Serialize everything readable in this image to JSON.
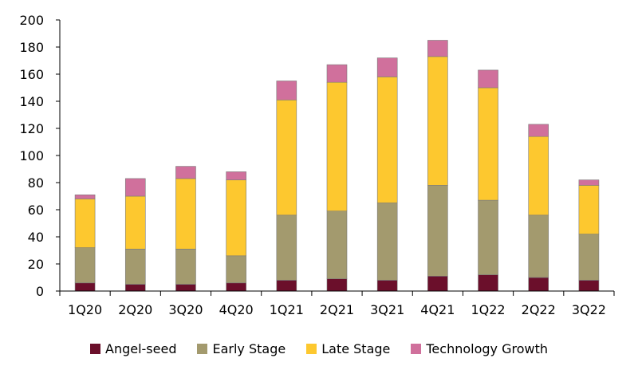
{
  "chart_data": {
    "type": "bar",
    "stacked": true,
    "categories": [
      "1Q20",
      "2Q20",
      "3Q20",
      "4Q20",
      "1Q21",
      "2Q21",
      "3Q21",
      "4Q21",
      "1Q22",
      "2Q22",
      "3Q22"
    ],
    "series": [
      {
        "name": "Angel-seed",
        "color": "#6b0f2b",
        "values": [
          6,
          5,
          5,
          6,
          8,
          9,
          8,
          11,
          12,
          10,
          8
        ]
      },
      {
        "name": "Early Stage",
        "color": "#a39a6e",
        "values": [
          26,
          26,
          26,
          20,
          48,
          50,
          57,
          67,
          55,
          46,
          34
        ]
      },
      {
        "name": "Late Stage",
        "color": "#fdc82f",
        "values": [
          36,
          39,
          52,
          56,
          85,
          95,
          93,
          95,
          83,
          58,
          36
        ]
      },
      {
        "name": "Technology Growth",
        "color": "#d0709c",
        "values": [
          3,
          13,
          9,
          6,
          14,
          13,
          14,
          12,
          13,
          9,
          4
        ]
      }
    ],
    "yticks": [
      "0",
      "20",
      "40",
      "60",
      "80",
      "100",
      "120",
      "140",
      "160",
      "180",
      "200"
    ],
    "ylim": [
      0,
      200
    ],
    "grid": false,
    "legend_position": "bottom",
    "title": "",
    "xlabel": "",
    "ylabel": ""
  }
}
